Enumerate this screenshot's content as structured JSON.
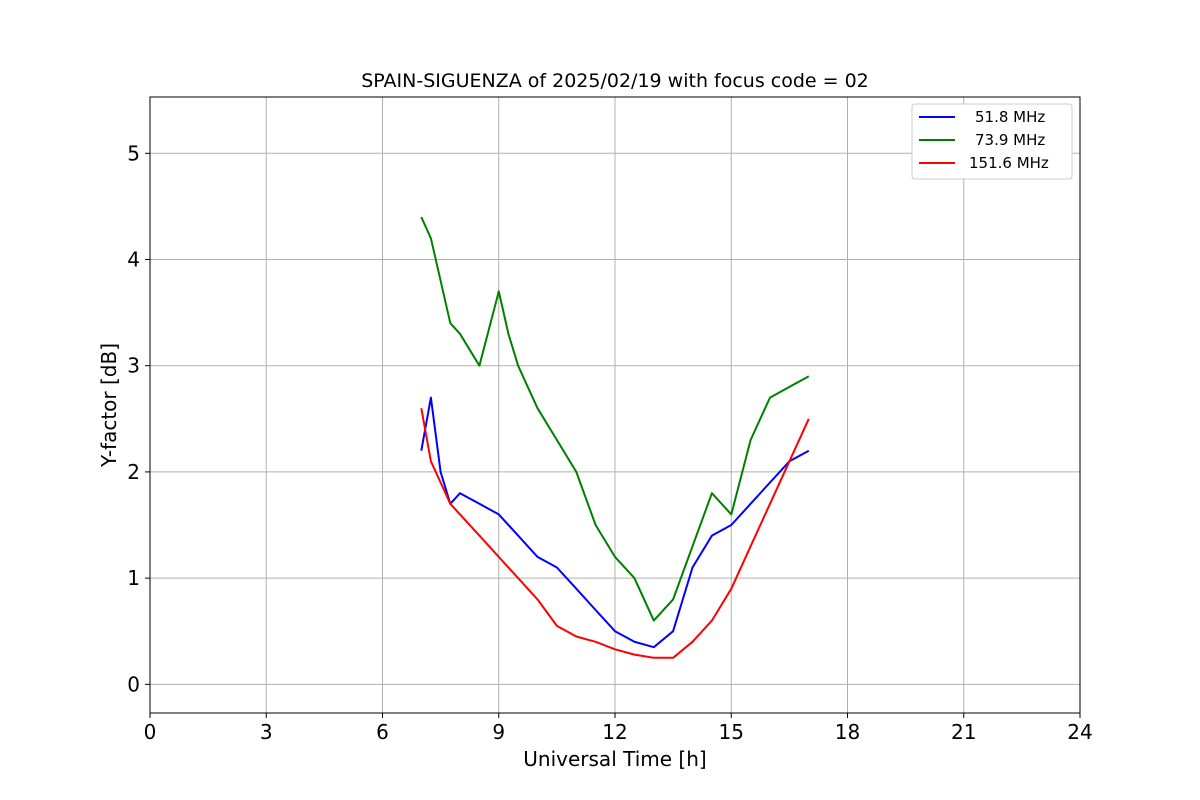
{
  "chart_data": {
    "type": "line",
    "title": "SPAIN-SIGUENZA of 2025/02/19 with focus code = 02",
    "xlabel": "Universal Time [h]",
    "ylabel": "Y-factor [dB]",
    "xlim": [
      0,
      24
    ],
    "ylim": [
      -0.27,
      5.53
    ],
    "xticks": [
      0,
      3,
      6,
      9,
      12,
      15,
      18,
      21,
      24
    ],
    "xtick_labels": [
      "0",
      "3",
      "6",
      "9",
      "12",
      "15",
      "18",
      "21",
      "24"
    ],
    "yticks": [
      0,
      1,
      2,
      3,
      4,
      5
    ],
    "ytick_labels": [
      "0",
      "1",
      "2",
      "3",
      "4",
      "5"
    ],
    "grid": true,
    "legend_position": "top-right",
    "series": [
      {
        "name": "51.8 MHz",
        "color": "#0000ff",
        "x": [
          7.0,
          7.25,
          7.5,
          7.75,
          8.0,
          8.5,
          9.0,
          9.5,
          10.0,
          10.5,
          11.0,
          11.5,
          12.0,
          12.5,
          13.0,
          13.5,
          14.0,
          14.5,
          15.0,
          15.5,
          16.0,
          16.5,
          17.0
        ],
        "values": [
          2.2,
          2.7,
          2.0,
          1.7,
          1.8,
          1.7,
          1.6,
          1.4,
          1.2,
          1.1,
          0.9,
          0.7,
          0.5,
          0.4,
          0.35,
          0.5,
          1.1,
          1.4,
          1.5,
          1.7,
          1.9,
          2.1,
          2.2
        ]
      },
      {
        "name": "73.9 MHz",
        "color": "#008000",
        "x": [
          7.0,
          7.25,
          7.5,
          7.75,
          8.0,
          8.5,
          9.0,
          9.25,
          9.5,
          10.0,
          10.5,
          11.0,
          11.5,
          12.0,
          12.5,
          13.0,
          13.5,
          14.0,
          14.5,
          15.0,
          15.5,
          16.0,
          16.5,
          17.0
        ],
        "values": [
          4.4,
          4.2,
          3.8,
          3.4,
          3.3,
          3.0,
          3.7,
          3.3,
          3.0,
          2.6,
          2.3,
          2.0,
          1.5,
          1.2,
          1.0,
          0.6,
          0.8,
          1.3,
          1.8,
          1.6,
          2.3,
          2.7,
          2.8,
          2.9
        ]
      },
      {
        "name": "151.6 MHz",
        "color": "#ff0000",
        "x": [
          7.0,
          7.25,
          7.5,
          7.75,
          8.0,
          8.5,
          9.0,
          9.5,
          10.0,
          10.5,
          11.0,
          11.5,
          12.0,
          12.5,
          13.0,
          13.5,
          14.0,
          14.5,
          15.0,
          15.5,
          16.0,
          16.5,
          17.0
        ],
        "values": [
          2.6,
          2.1,
          1.9,
          1.7,
          1.6,
          1.4,
          1.2,
          1.0,
          0.8,
          0.55,
          0.45,
          0.4,
          0.33,
          0.28,
          0.25,
          0.25,
          0.4,
          0.6,
          0.9,
          1.3,
          1.7,
          2.1,
          2.5
        ]
      }
    ]
  }
}
